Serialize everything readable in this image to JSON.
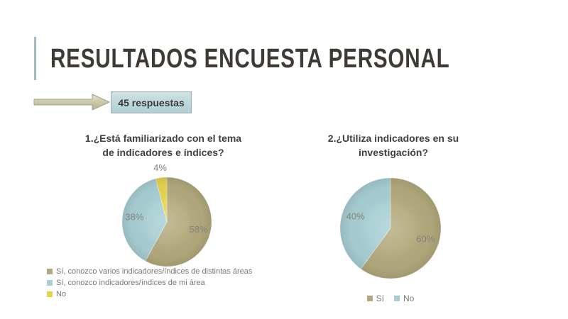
{
  "slide_title": "RESULTADOS ENCUESTA PERSONAL",
  "callout": {
    "label": "45 respuestas"
  },
  "colors": {
    "accent_bar": "#a3bcbf",
    "title_text": "#3e3a35",
    "callout_bg": "#bcd8db",
    "callout_border": "#9dadaf",
    "arrow_fill_light": "#ddd9bf",
    "arrow_fill_dark": "#b7b391",
    "arrow_stroke": "#9f9f97",
    "chart_title_text": "#3f3f3f",
    "pct_label_text": "#84827c",
    "legend_text": "#7b7870",
    "pie_olive": "#b2aa7c",
    "pie_blue": "#a7ced3",
    "pie_yellow": "#e6d44f"
  },
  "chart_data": [
    {
      "type": "pie",
      "title": "1.¿Está familiarizado con el tema de indicadores e índices?",
      "title_lines": [
        "1.¿Está familiarizado con el tema",
        "de indicadores e índices?"
      ],
      "labels": [
        "Sí, conozco varios indicadores/índices de distintas áreas",
        "Sí, conozco indicadores/índices de mi área",
        "No"
      ],
      "values": [
        58,
        38,
        4
      ],
      "pct_labels": [
        "58%",
        "38%",
        "4%"
      ],
      "colors": [
        "#b2aa7c",
        "#a7ced3",
        "#e6d44f"
      ],
      "legend_position": "bottom-left",
      "start_angle_deg": 0,
      "direction": "clockwise"
    },
    {
      "type": "pie",
      "title": "2.¿Utiliza indicadores en su investigación?",
      "title_lines": [
        "2.¿Utiliza indicadores en su",
        "investigación?"
      ],
      "labels": [
        "Sí",
        "No"
      ],
      "values": [
        60,
        40
      ],
      "pct_labels": [
        "60%",
        "40%"
      ],
      "colors": [
        "#b2aa7c",
        "#a7ced3"
      ],
      "legend_position": "bottom-center",
      "start_angle_deg": 0,
      "direction": "clockwise"
    }
  ]
}
